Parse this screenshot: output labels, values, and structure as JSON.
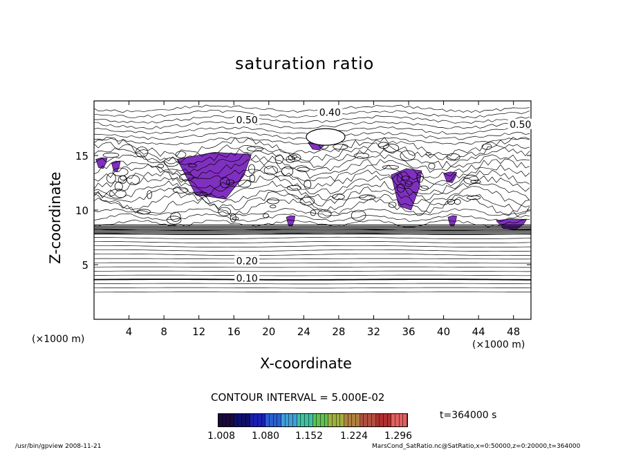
{
  "chart_data": {
    "type": "contour",
    "title": "saturation ratio",
    "xlabel": "X-coordinate",
    "ylabel": "Z-coordinate",
    "x_unit": "(×1000 m)",
    "y_unit": "(×1000 m)",
    "xlim": [
      0,
      50
    ],
    "ylim": [
      0,
      20
    ],
    "x_ticks": [
      4,
      8,
      12,
      16,
      20,
      24,
      28,
      32,
      36,
      40,
      44,
      48
    ],
    "y_ticks": [
      5,
      10,
      15
    ],
    "contour_interval_label": "CONTOUR INTERVAL = 5.000E-02",
    "contour_labels": [
      {
        "text": "0.10",
        "x": 17.5,
        "y": 3.7
      },
      {
        "text": "0.20",
        "x": 17.5,
        "y": 5.3
      },
      {
        "text": "0.50",
        "x": 17.5,
        "y": 18.2
      },
      {
        "text": "0.40",
        "x": 27.0,
        "y": 18.9
      },
      {
        "text": "0.50",
        "x": 48.8,
        "y": 17.8
      }
    ],
    "saturated_regions": [
      {
        "x": [
          9.5,
          18.0
        ],
        "y": [
          11.0,
          15.3
        ]
      },
      {
        "x": [
          34.0,
          37.5
        ],
        "y": [
          10.0,
          13.8
        ]
      },
      {
        "x": [
          0.2,
          1.5
        ],
        "y": [
          13.8,
          14.8
        ]
      },
      {
        "x": [
          2.0,
          3.0
        ],
        "y": [
          13.5,
          14.5
        ]
      },
      {
        "x": [
          24.5,
          26.5
        ],
        "y": [
          15.5,
          16.3
        ]
      },
      {
        "x": [
          40.0,
          41.5
        ],
        "y": [
          12.5,
          13.5
        ]
      },
      {
        "x": [
          46.0,
          49.5
        ],
        "y": [
          8.2,
          9.2
        ]
      },
      {
        "x": [
          40.5,
          41.5
        ],
        "y": [
          8.5,
          9.5
        ]
      },
      {
        "x": [
          22.0,
          23.0
        ],
        "y": [
          8.5,
          9.5
        ]
      }
    ],
    "colorbar": {
      "tick_labels": [
        "1.008",
        "1.080",
        "1.152",
        "1.224",
        "1.296"
      ],
      "colors": [
        "#1a0a3a",
        "#10106a",
        "#1a20b0",
        "#2a60d0",
        "#40a0d8",
        "#40c0a0",
        "#60c050",
        "#a0b040",
        "#b08040",
        "#b05040",
        "#b03030",
        "#e06060"
      ]
    },
    "time_label": "t=364000 s",
    "saturated_color": "#8030c0"
  },
  "footer": {
    "left": "/usr/bin/gpview   2008-11-21",
    "right": "MarsCond_SatRatio.nc@SatRatio,x=0:50000,z=0:20000,t=364000"
  }
}
